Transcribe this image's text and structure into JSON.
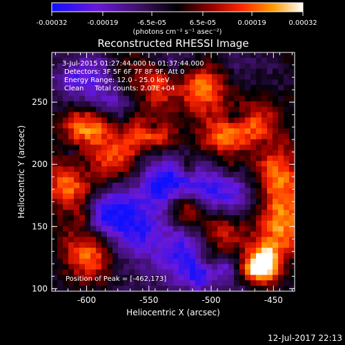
{
  "colorbar": {
    "tick_labels": [
      "-0.00032",
      "-0.00019",
      "-6.5e-05",
      "6.5e-05",
      "0.00019",
      "0.00032"
    ],
    "unit_label": "(photons cm⁻² s⁻¹ asec⁻²)"
  },
  "chart_data": {
    "type": "heatmap",
    "title": "Reconstructed RHESSI Image",
    "xlabel": "Heliocentric X (arcsec)",
    "ylabel": "Heliocentric Y (arcsec)",
    "xlim": [
      -628,
      -433
    ],
    "ylim": [
      98,
      290
    ],
    "x_ticks": [
      "-600",
      "-550",
      "-500",
      "-450"
    ],
    "y_ticks": [
      "100",
      "150",
      "200",
      "250"
    ],
    "color_range": [
      -0.00032,
      0.00032
    ],
    "colormap": "blue-purple-black-red-yellow-white",
    "peak_position": [
      -462,
      173
    ],
    "annotations": [
      "3-Jul-2015 01:27:44.000 to 01:37:44.000",
      "Detectors: 3F 5F 6F 7F 8F 9F, Att 0",
      "Energy Range: 12.0 - 25.0 keV",
      "Clean     Total counts: 2.07E+04",
      "Position of Peak = [-462,173]"
    ]
  },
  "footer": {
    "timestamp": "12-Jul-2017 22:13"
  }
}
